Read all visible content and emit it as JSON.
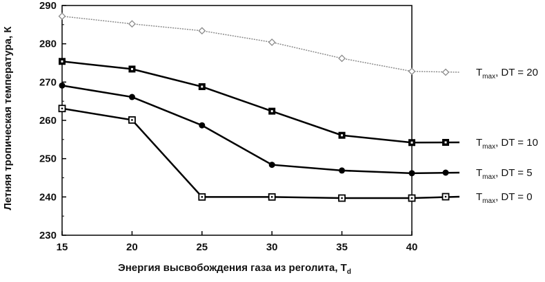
{
  "chart_data": {
    "type": "line",
    "xlabel_main": "Энергия высвобождения газа из реголита, T",
    "xlabel_sub": "d",
    "ylabel": "Летняя тропическая температура, К",
    "x": [
      15,
      20,
      25,
      30,
      35,
      40
    ],
    "xlim": [
      15,
      40
    ],
    "ylim": [
      230,
      290
    ],
    "xticks": [
      "15",
      "20",
      "25",
      "30",
      "35",
      "40"
    ],
    "yticks": [
      "230",
      "240",
      "250",
      "260",
      "270",
      "280",
      "290"
    ],
    "grid": false,
    "legend_placement": "right, beside line ends",
    "series": [
      {
        "name": "T_max, DT = 20",
        "label_main": "T",
        "label_sub": "max",
        "label_rest": ", DT = 20",
        "values": [
          287.2,
          285.2,
          283.4,
          280.4,
          276.2,
          272.8
        ],
        "marker": "diamond-open",
        "color": "#8a8a8a",
        "dashed": true
      },
      {
        "name": "T_max, DT = 10",
        "label_main": "T",
        "label_sub": "max",
        "label_rest": ", DT = 10",
        "values": [
          275.4,
          273.4,
          268.8,
          262.4,
          256.1,
          254.2
        ],
        "marker": "square-filled",
        "color": "#000000",
        "dashed": false
      },
      {
        "name": "T_max, DT = 5",
        "label_main": "T",
        "label_sub": "max",
        "label_rest": ", DT = 5",
        "values": [
          269.1,
          266.1,
          258.7,
          248.4,
          246.9,
          246.2
        ],
        "marker": "circle-filled",
        "color": "#000000",
        "dashed": false
      },
      {
        "name": "T_max, DT = 0",
        "label_main": "T",
        "label_sub": "max",
        "label_rest": ", DT = 0",
        "values": [
          263.1,
          260.1,
          240.0,
          240.0,
          239.7,
          239.7
        ],
        "marker": "square-open",
        "color": "#000000",
        "dashed": false
      }
    ]
  }
}
